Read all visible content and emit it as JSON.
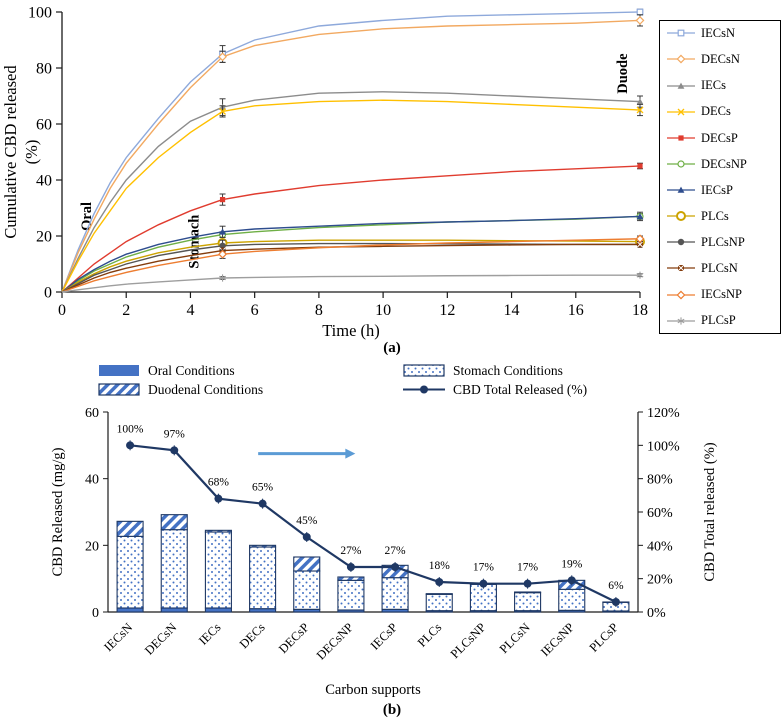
{
  "captions": {
    "a": "(a)",
    "b": "(b)"
  },
  "chart_data": [
    {
      "type": "line",
      "xlabel": "Time (h)",
      "ylabel_line1": "Cumulative CBD released",
      "ylabel_line2": "(%)",
      "xlim": [
        0,
        18
      ],
      "ylim": [
        0,
        100
      ],
      "xticks": [
        0,
        2,
        4,
        6,
        8,
        10,
        12,
        14,
        16,
        18
      ],
      "yticks": [
        0,
        20,
        40,
        60,
        80,
        100
      ],
      "x": [
        0,
        0.5,
        1,
        1.5,
        2,
        3,
        4,
        5,
        6,
        8,
        10,
        12,
        14,
        16,
        18
      ],
      "region_labels": [
        {
          "text": "Oral",
          "t": 0.9,
          "v": 27
        },
        {
          "text": "Stomach",
          "t": 4.25,
          "v": 18
        },
        {
          "text": "Duode",
          "t": 17.6,
          "v": 78
        }
      ],
      "series": [
        {
          "name": "IECsN",
          "color": "#8EA9DB",
          "marker": "square-open",
          "err": [
            3,
            1
          ],
          "values": [
            0,
            15,
            28,
            39,
            48,
            62,
            75,
            85,
            90,
            95,
            97,
            98.5,
            99,
            99.5,
            100
          ]
        },
        {
          "name": "DECsN",
          "color": "#F2A961",
          "marker": "diamond-open",
          "err": [
            2,
            2
          ],
          "values": [
            0,
            14,
            26,
            37,
            46,
            60,
            73,
            84,
            88,
            92,
            94,
            95,
            95.5,
            96,
            97
          ]
        },
        {
          "name": "IECs",
          "color": "#8C8C8C",
          "marker": "triangle",
          "err": [
            3,
            2
          ],
          "values": [
            0,
            12,
            23,
            32,
            40,
            52,
            61,
            66,
            68.5,
            71,
            71.5,
            71,
            70,
            69,
            68
          ]
        },
        {
          "name": "DECs",
          "color": "#FFC000",
          "marker": "x",
          "err": [
            2,
            2
          ],
          "values": [
            0,
            11,
            21,
            29,
            37,
            48,
            57,
            64.5,
            66.5,
            68,
            68.5,
            68,
            67,
            66,
            65
          ]
        },
        {
          "name": "DECsP",
          "color": "#E03C2F",
          "marker": "square",
          "err": [
            2,
            1
          ],
          "values": [
            0,
            5,
            10,
            14,
            18,
            24,
            29,
            33,
            35,
            38,
            40,
            41.5,
            43,
            44,
            45
          ]
        },
        {
          "name": "DECsNP",
          "color": "#6FAF46",
          "marker": "circle-open",
          "err": [
            1,
            1
          ],
          "values": [
            0,
            4,
            7.5,
            10,
            12.5,
            16,
            18.5,
            20.5,
            21.5,
            23,
            24,
            25,
            25.5,
            26,
            27
          ]
        },
        {
          "name": "IECsP",
          "color": "#2E4D8E",
          "marker": "triangle",
          "err": [
            2,
            1.5
          ],
          "values": [
            0,
            4.5,
            8,
            11,
            13.5,
            17,
            19.5,
            21.5,
            22.5,
            23.5,
            24.5,
            25,
            25.5,
            26.2,
            27
          ]
        },
        {
          "name": "PLCs",
          "color": "#CCA300",
          "marker": "circle-open-bold",
          "err": [
            1,
            1
          ],
          "values": [
            0,
            3.5,
            6.5,
            9,
            11,
            14,
            16,
            17.5,
            18,
            18.5,
            18.5,
            18.5,
            18.3,
            18.2,
            18
          ]
        },
        {
          "name": "PLCsNP",
          "color": "#555555",
          "marker": "circle",
          "err": [
            2,
            1
          ],
          "values": [
            0,
            3,
            6,
            8,
            10,
            13,
            15,
            16.5,
            17,
            17.3,
            17.3,
            17.2,
            17.1,
            17,
            17
          ]
        },
        {
          "name": "PLCsN",
          "color": "#843C0C",
          "marker": "square-x",
          "err": [
            1,
            1
          ],
          "values": [
            0,
            2.5,
            5,
            7,
            8.5,
            11,
            13,
            14.8,
            15.3,
            16,
            16.3,
            16.6,
            16.8,
            17,
            17
          ]
        },
        {
          "name": "IECsNP",
          "color": "#ED7D31",
          "marker": "diamond-open",
          "err": [
            1.5,
            1
          ],
          "values": [
            0,
            2,
            4,
            5.5,
            7,
            9.5,
            11.5,
            13.5,
            14.5,
            15.8,
            16.8,
            17.5,
            18,
            18.5,
            19
          ]
        },
        {
          "name": "PLCsP",
          "color": "#9E9E9E",
          "marker": "asterisk",
          "err": [
            0.5,
            0.5
          ],
          "values": [
            0,
            0.8,
            1.5,
            2.2,
            2.8,
            3.6,
            4.3,
            5,
            5.2,
            5.5,
            5.6,
            5.8,
            5.9,
            6,
            6
          ]
        }
      ]
    },
    {
      "type": "bar",
      "xlabel": "Carbon supports",
      "ylabel_left": "CBD Released (mg/g)",
      "ylabel_right": "CBD Total released (%)",
      "left_ticks": [
        0,
        20,
        40,
        60
      ],
      "right_ticks": [
        0,
        20,
        40,
        60,
        80,
        100,
        120
      ],
      "right_tick_labels": [
        "0%",
        "20%",
        "40%",
        "60%",
        "80%",
        "100%",
        "120%"
      ],
      "ylim_left": [
        0,
        60
      ],
      "ylim_right": [
        0,
        120
      ],
      "categories": [
        "IECsN",
        "DECsN",
        "IECs",
        "DECs",
        "DECsP",
        "DECsNP",
        "IECsP",
        "PLCs",
        "PLCsNP",
        "PLCsN",
        "IECsNP",
        "PLCsP"
      ],
      "series": [
        {
          "name": "Oral Conditions",
          "values": [
            1.2,
            1.2,
            1.2,
            1.0,
            0.8,
            0.6,
            0.8,
            0.4,
            0.4,
            0.4,
            0.5,
            0.3
          ]
        },
        {
          "name": "Stomach Conditions",
          "values": [
            21.5,
            23.5,
            22.8,
            18.5,
            11.5,
            8.9,
            9.5,
            4.9,
            7.9,
            5.4,
            6.3,
            2.6
          ]
        },
        {
          "name": "Duodenal Conditions",
          "values": [
            4.5,
            4.5,
            0.5,
            0.5,
            4.2,
            1.0,
            3.7,
            0.2,
            0.2,
            0.2,
            2.7,
            0.1
          ]
        },
        {
          "name": "CBD Total Released (%)",
          "values": [
            100,
            97,
            68,
            65,
            45,
            27,
            27,
            18,
            17,
            17,
            19,
            6
          ]
        }
      ],
      "percent_labels": [
        "100%",
        "97%",
        "68%",
        "65%",
        "45%",
        "27%",
        "27%",
        "18%",
        "17%",
        "17%",
        "19%",
        "6%"
      ],
      "legend": [
        {
          "label": "Oral Conditions",
          "swatch": "solid"
        },
        {
          "label": "Stomach Conditions",
          "swatch": "dots"
        },
        {
          "label": "Duodenal Conditions",
          "swatch": "hatch"
        },
        {
          "label": "CBD Total Released (%)",
          "swatch": "line"
        }
      ],
      "arrow": {
        "from": 3.4,
        "to": 5.6,
        "percent": 95
      },
      "colors": {
        "blue": "#4472C4",
        "navy": "#1F3864",
        "arrow": "#5B9BD5"
      }
    }
  ]
}
